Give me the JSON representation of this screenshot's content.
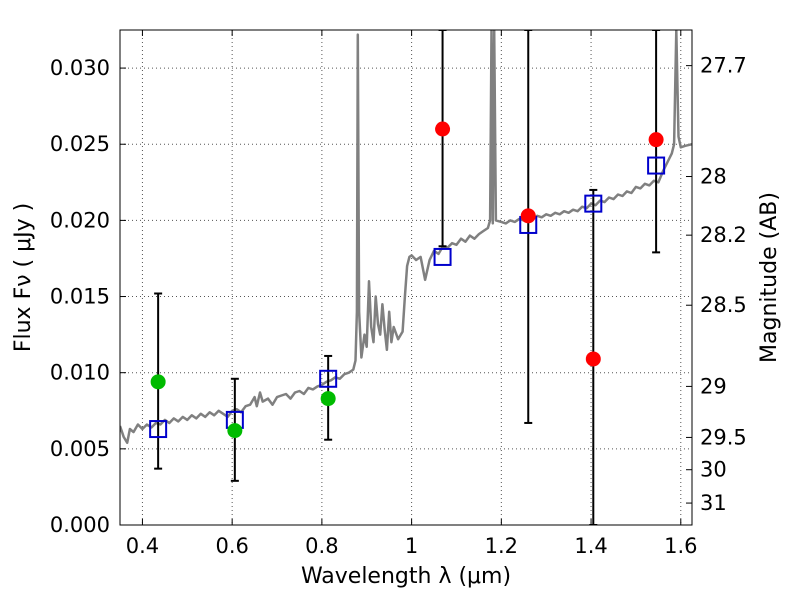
{
  "chart_data": {
    "type": "scatter",
    "title": "",
    "xlabel": "Wavelength  λ (μm)",
    "ylabel": "Flux  Fν  ( μJy )",
    "y2label": "Magnitude (AB)",
    "xlim": [
      0.35,
      1.625
    ],
    "ylim": [
      0.0,
      0.0325
    ],
    "grid": true,
    "x_ticks": [
      0.4,
      0.6,
      0.8,
      1.0,
      1.2,
      1.4,
      1.6
    ],
    "x_tick_labels": [
      "0.4",
      "0.6",
      "0.8",
      "1",
      "1.2",
      "1.4",
      "1.6"
    ],
    "y_ticks": [
      0.0,
      0.005,
      0.01,
      0.015,
      0.02,
      0.025,
      0.03
    ],
    "y_tick_labels": [
      "0.000",
      "0.005",
      "0.010",
      "0.015",
      "0.020",
      "0.025",
      "0.030"
    ],
    "y2_ticks": [
      {
        "label": "27.7",
        "flux": 0.03016
      },
      {
        "label": "28",
        "flux": 0.02288
      },
      {
        "label": "28.2",
        "flux": 0.01903
      },
      {
        "label": "28.5",
        "flux": 0.01443
      },
      {
        "label": "29",
        "flux": 0.0091
      },
      {
        "label": "29.5",
        "flux": 0.00575
      },
      {
        "label": "30",
        "flux": 0.00363
      },
      {
        "label": "31",
        "flux": 0.00144
      }
    ],
    "colors": {
      "spectrum": "#808080",
      "model_box": "#0000cc",
      "green": "#00bb00",
      "red": "#ff0000",
      "errorbar": "#000000",
      "grid": "#555555"
    },
    "series": [
      {
        "marker": "green-circle",
        "points": [
          {
            "x": 0.435,
            "y": 0.0094,
            "err_lo": 0.0037,
            "err_hi": 0.0152
          },
          {
            "x": 0.606,
            "y": 0.0062,
            "err_lo": 0.0029,
            "err_hi": 0.0096
          },
          {
            "x": 0.814,
            "y": 0.0083,
            "err_lo": 0.0056,
            "err_hi": 0.0111
          }
        ]
      },
      {
        "marker": "red-circle",
        "points": [
          {
            "x": 1.069,
            "y": 0.026,
            "err_lo": 0.0183,
            "err_hi": 0.0325
          },
          {
            "x": 1.26,
            "y": 0.0203,
            "err_lo": 0.0067,
            "err_hi": 0.0325
          },
          {
            "x": 1.405,
            "y": 0.0109,
            "err_lo": 0.0,
            "err_hi": 0.022
          },
          {
            "x": 1.545,
            "y": 0.0253,
            "err_lo": 0.0179,
            "err_hi": 0.0325
          }
        ]
      },
      {
        "marker": "blue-square",
        "points": [
          {
            "x": 0.435,
            "y": 0.0063
          },
          {
            "x": 0.606,
            "y": 0.0069
          },
          {
            "x": 0.814,
            "y": 0.0096
          },
          {
            "x": 1.069,
            "y": 0.0176
          },
          {
            "x": 1.26,
            "y": 0.0197
          },
          {
            "x": 1.405,
            "y": 0.0211
          },
          {
            "x": 1.545,
            "y": 0.0236
          }
        ]
      },
      {
        "marker": "spectrum-line",
        "points": [
          [
            0.35,
            0.0065
          ],
          [
            0.358,
            0.0058
          ],
          [
            0.366,
            0.0054
          ],
          [
            0.372,
            0.0063
          ],
          [
            0.38,
            0.0061
          ],
          [
            0.39,
            0.0066
          ],
          [
            0.4,
            0.0063
          ],
          [
            0.41,
            0.0066
          ],
          [
            0.42,
            0.0064
          ],
          [
            0.43,
            0.0067
          ],
          [
            0.44,
            0.0066
          ],
          [
            0.45,
            0.0069
          ],
          [
            0.46,
            0.0067
          ],
          [
            0.47,
            0.007
          ],
          [
            0.48,
            0.0068
          ],
          [
            0.49,
            0.0071
          ],
          [
            0.5,
            0.0069
          ],
          [
            0.51,
            0.0072
          ],
          [
            0.52,
            0.007
          ],
          [
            0.53,
            0.0073
          ],
          [
            0.54,
            0.0071
          ],
          [
            0.55,
            0.0074
          ],
          [
            0.56,
            0.0072
          ],
          [
            0.57,
            0.0075
          ],
          [
            0.58,
            0.0073
          ],
          [
            0.59,
            0.0071
          ],
          [
            0.6,
            0.0075
          ],
          [
            0.61,
            0.0076
          ],
          [
            0.62,
            0.0074
          ],
          [
            0.63,
            0.0078
          ],
          [
            0.64,
            0.0079
          ],
          [
            0.65,
            0.0084
          ],
          [
            0.655,
            0.0078
          ],
          [
            0.662,
            0.0087
          ],
          [
            0.668,
            0.0081
          ],
          [
            0.68,
            0.0083
          ],
          [
            0.69,
            0.0079
          ],
          [
            0.7,
            0.0084
          ],
          [
            0.71,
            0.0085
          ],
          [
            0.72,
            0.0086
          ],
          [
            0.73,
            0.0083
          ],
          [
            0.74,
            0.0087
          ],
          [
            0.75,
            0.0088
          ],
          [
            0.76,
            0.0086
          ],
          [
            0.77,
            0.009
          ],
          [
            0.78,
            0.0089
          ],
          [
            0.79,
            0.0091
          ],
          [
            0.8,
            0.0092
          ],
          [
            0.81,
            0.0094
          ],
          [
            0.82,
            0.0095
          ],
          [
            0.83,
            0.0097
          ],
          [
            0.84,
            0.0096
          ],
          [
            0.85,
            0.0099
          ],
          [
            0.86,
            0.01
          ],
          [
            0.87,
            0.0102
          ],
          [
            0.875,
            0.0108
          ],
          [
            0.878,
            0.014
          ],
          [
            0.88,
            0.0322
          ],
          [
            0.883,
            0.014
          ],
          [
            0.888,
            0.011
          ],
          [
            0.895,
            0.0125
          ],
          [
            0.9,
            0.0117
          ],
          [
            0.905,
            0.016
          ],
          [
            0.91,
            0.013
          ],
          [
            0.915,
            0.012
          ],
          [
            0.92,
            0.015
          ],
          [
            0.925,
            0.0132
          ],
          [
            0.93,
            0.0125
          ],
          [
            0.935,
            0.0145
          ],
          [
            0.94,
            0.0128
          ],
          [
            0.945,
            0.0115
          ],
          [
            0.95,
            0.014
          ],
          [
            0.955,
            0.012
          ],
          [
            0.96,
            0.013
          ],
          [
            0.97,
            0.0122
          ],
          [
            0.98,
            0.0127
          ],
          [
            0.985,
            0.015
          ],
          [
            0.99,
            0.017
          ],
          [
            0.995,
            0.0176
          ],
          [
            1.0,
            0.0177
          ],
          [
            1.01,
            0.0174
          ],
          [
            1.02,
            0.0176
          ],
          [
            1.03,
            0.0161
          ],
          [
            1.04,
            0.0174
          ],
          [
            1.05,
            0.018
          ],
          [
            1.06,
            0.0178
          ],
          [
            1.07,
            0.0183
          ],
          [
            1.08,
            0.0182
          ],
          [
            1.09,
            0.0185
          ],
          [
            1.1,
            0.0184
          ],
          [
            1.11,
            0.0188
          ],
          [
            1.12,
            0.0186
          ],
          [
            1.13,
            0.019
          ],
          [
            1.14,
            0.0188
          ],
          [
            1.15,
            0.0191
          ],
          [
            1.16,
            0.0193
          ],
          [
            1.17,
            0.0195
          ],
          [
            1.175,
            0.02
          ],
          [
            1.178,
            0.0325
          ],
          [
            1.181,
            0.0198
          ],
          [
            1.184,
            0.0325
          ],
          [
            1.188,
            0.02
          ],
          [
            1.2,
            0.0199
          ],
          [
            1.21,
            0.0198
          ],
          [
            1.22,
            0.02
          ],
          [
            1.23,
            0.0199
          ],
          [
            1.24,
            0.0201
          ],
          [
            1.25,
            0.02
          ],
          [
            1.26,
            0.0202
          ],
          [
            1.27,
            0.0201
          ],
          [
            1.28,
            0.0203
          ],
          [
            1.29,
            0.0202
          ],
          [
            1.3,
            0.0204
          ],
          [
            1.31,
            0.0203
          ],
          [
            1.32,
            0.0205
          ],
          [
            1.33,
            0.0204
          ],
          [
            1.34,
            0.0206
          ],
          [
            1.35,
            0.0205
          ],
          [
            1.36,
            0.0207
          ],
          [
            1.37,
            0.0206
          ],
          [
            1.38,
            0.0209
          ],
          [
            1.39,
            0.0208
          ],
          [
            1.4,
            0.0211
          ],
          [
            1.41,
            0.021
          ],
          [
            1.42,
            0.0213
          ],
          [
            1.43,
            0.0212
          ],
          [
            1.44,
            0.0215
          ],
          [
            1.45,
            0.0214
          ],
          [
            1.46,
            0.0217
          ],
          [
            1.47,
            0.0216
          ],
          [
            1.48,
            0.0219
          ],
          [
            1.49,
            0.0218
          ],
          [
            1.5,
            0.0222
          ],
          [
            1.51,
            0.0221
          ],
          [
            1.52,
            0.0224
          ],
          [
            1.53,
            0.0223
          ],
          [
            1.54,
            0.0226
          ],
          [
            1.55,
            0.0225
          ],
          [
            1.56,
            0.0232
          ],
          [
            1.57,
            0.0238
          ],
          [
            1.58,
            0.0244
          ],
          [
            1.585,
            0.025
          ],
          [
            1.59,
            0.0325
          ],
          [
            1.595,
            0.0255
          ],
          [
            1.6,
            0.0248
          ],
          [
            1.61,
            0.0249
          ],
          [
            1.625,
            0.025
          ]
        ]
      }
    ]
  }
}
